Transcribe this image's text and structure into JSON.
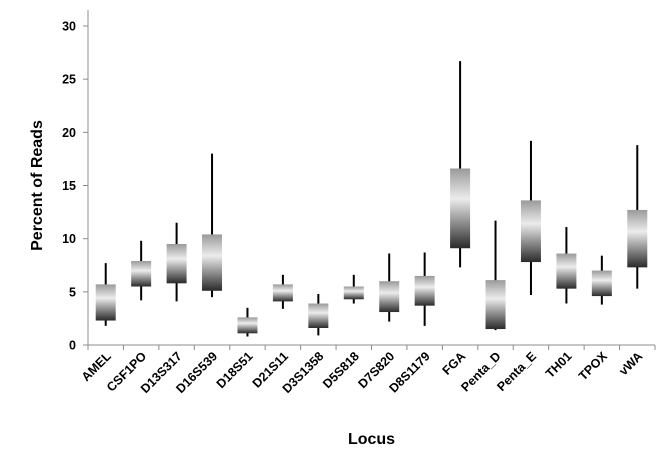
{
  "chart_data": {
    "type": "box",
    "title": "",
    "xlabel": "Locus",
    "ylabel": "Percent of Reads",
    "ylim": [
      0,
      30
    ],
    "yticks": [
      0,
      5,
      10,
      15,
      20,
      25,
      30
    ],
    "grid": false,
    "legend": "none",
    "categories": [
      "AMEL",
      "CSF1PO",
      "D13S317",
      "D16S539",
      "D18S51",
      "D21S11",
      "D3S1358",
      "D5S818",
      "D7S820",
      "D8S1179",
      "FGA",
      "Penta_D",
      "Penta_E",
      "TH01",
      "TPOX",
      "vWA"
    ],
    "series": [
      {
        "min": [
          1.8,
          4.2,
          4.1,
          4.5,
          0.8,
          3.4,
          0.9,
          3.9,
          2.2,
          1.8,
          7.3,
          1.4,
          4.7,
          3.9,
          3.8,
          5.3
        ],
        "box_low": [
          2.3,
          5.5,
          5.8,
          5.1,
          1.1,
          4.1,
          1.6,
          4.3,
          3.1,
          3.7,
          9.1,
          1.5,
          7.8,
          5.3,
          4.6,
          7.3
        ],
        "box_high": [
          5.7,
          7.9,
          9.5,
          10.4,
          2.6,
          5.7,
          3.9,
          5.5,
          6.0,
          6.5,
          16.6,
          6.1,
          13.6,
          8.6,
          7.0,
          12.7
        ],
        "max": [
          7.7,
          9.8,
          11.5,
          18.0,
          3.5,
          6.6,
          4.8,
          6.6,
          8.6,
          8.7,
          26.7,
          11.7,
          19.2,
          11.1,
          8.4,
          18.8
        ]
      }
    ]
  },
  "colors": {
    "axis": "#8c8c8c",
    "whisker": "#000000",
    "box_top": "#9a9a9a",
    "box_mid": "#ececec",
    "box_bottom": "#2a2a2a"
  }
}
